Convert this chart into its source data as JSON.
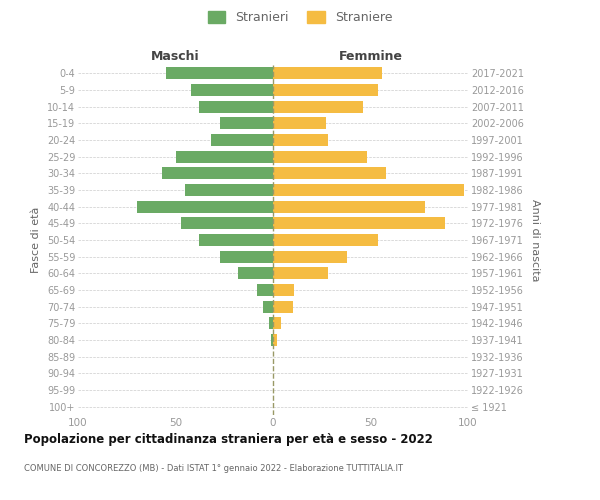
{
  "age_groups": [
    "100+",
    "95-99",
    "90-94",
    "85-89",
    "80-84",
    "75-79",
    "70-74",
    "65-69",
    "60-64",
    "55-59",
    "50-54",
    "45-49",
    "40-44",
    "35-39",
    "30-34",
    "25-29",
    "20-24",
    "15-19",
    "10-14",
    "5-9",
    "0-4"
  ],
  "birth_years": [
    "≤ 1921",
    "1922-1926",
    "1927-1931",
    "1932-1936",
    "1937-1941",
    "1942-1946",
    "1947-1951",
    "1952-1956",
    "1957-1961",
    "1962-1966",
    "1967-1971",
    "1972-1976",
    "1977-1981",
    "1982-1986",
    "1987-1991",
    "1992-1996",
    "1997-2001",
    "2002-2006",
    "2007-2011",
    "2012-2016",
    "2017-2021"
  ],
  "maschi": [
    0,
    0,
    0,
    0,
    1,
    2,
    5,
    8,
    18,
    27,
    38,
    47,
    70,
    45,
    57,
    50,
    32,
    27,
    38,
    42,
    55
  ],
  "femmine": [
    0,
    0,
    0,
    0,
    2,
    4,
    10,
    11,
    28,
    38,
    54,
    88,
    78,
    98,
    58,
    48,
    28,
    27,
    46,
    54,
    56
  ],
  "male_color": "#6aaa64",
  "female_color": "#f5bc42",
  "title": "Popolazione per cittadinanza straniera per età e sesso - 2022",
  "subtitle": "COMUNE DI CONCOREZZO (MB) - Dati ISTAT 1° gennaio 2022 - Elaborazione TUTTITALIA.IT",
  "ylabel_left": "Fasce di età",
  "ylabel_right": "Anni di nascita",
  "header_left": "Maschi",
  "header_right": "Femmine",
  "legend_male": "Stranieri",
  "legend_female": "Straniere",
  "xlim": 100,
  "background_color": "#ffffff",
  "grid_color": "#cccccc",
  "tick_color": "#999999",
  "label_color": "#666666",
  "title_color": "#111111",
  "header_color": "#444444"
}
